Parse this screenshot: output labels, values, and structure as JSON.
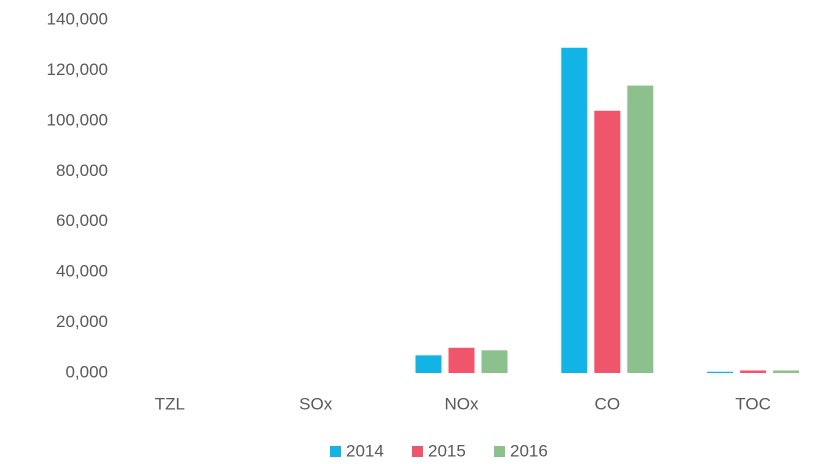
{
  "chart_data": {
    "type": "bar",
    "categories": [
      "TZL",
      "SOx",
      "NOx",
      "CO",
      "TOC"
    ],
    "series": [
      {
        "name": "2014",
        "color": "#12b4e6",
        "values": [
          0,
          0,
          7000,
          129000,
          500
        ]
      },
      {
        "name": "2015",
        "color": "#f0566b",
        "values": [
          0,
          0,
          10000,
          104000,
          1000
        ]
      },
      {
        "name": "2016",
        "color": "#8cc08c",
        "values": [
          0,
          0,
          9000,
          114000,
          1000
        ]
      }
    ],
    "ylim": [
      0,
      140000
    ],
    "yticks": [
      {
        "value": 0,
        "label": "0,000"
      },
      {
        "value": 20000,
        "label": "20,000"
      },
      {
        "value": 40000,
        "label": "40,000"
      },
      {
        "value": 60000,
        "label": "60,000"
      },
      {
        "value": 80000,
        "label": "80,000"
      },
      {
        "value": 100000,
        "label": "100,000"
      },
      {
        "value": 120000,
        "label": "120,000"
      },
      {
        "value": 140000,
        "label": "140,000"
      }
    ],
    "grid": false,
    "legend": "bottom"
  }
}
